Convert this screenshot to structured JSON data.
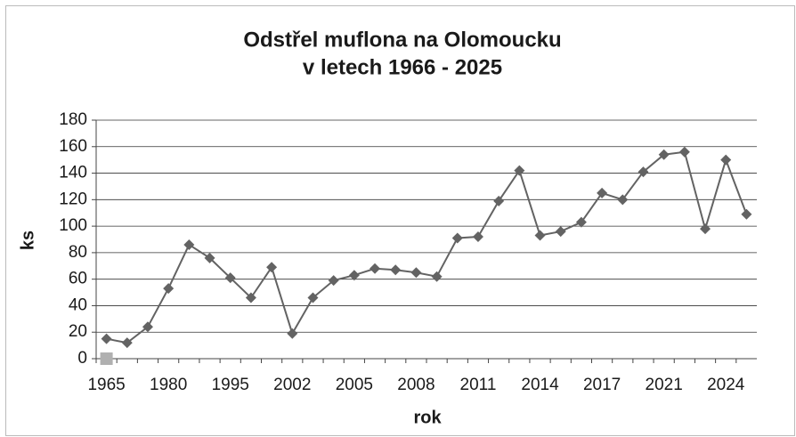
{
  "chart_data": {
    "type": "line",
    "title": [
      "Odstřel muflona na Olomoucku",
      "v letech 1966 - 2025"
    ],
    "x_label": "rok",
    "y_label": "ks",
    "categories": [
      "1965",
      null,
      null,
      "1980",
      null,
      null,
      "1995",
      null,
      null,
      "2002",
      null,
      null,
      "2005",
      null,
      null,
      "2008",
      null,
      null,
      "2011",
      null,
      null,
      "2014",
      null,
      null,
      "2017",
      null,
      null,
      "2021",
      null,
      null,
      "2024",
      null
    ],
    "series": [
      {
        "color": "#636363",
        "values": [
          15,
          12,
          24,
          53,
          86,
          76,
          61,
          46,
          69,
          19,
          46,
          59,
          63,
          68,
          67,
          65,
          62,
          91,
          92,
          119,
          142,
          93,
          96,
          103,
          125,
          120,
          141,
          154,
          156,
          98,
          150,
          109
        ]
      },
      {
        "color": "#b0b0b0",
        "values": [
          0,
          null,
          null,
          null,
          null,
          null,
          null,
          null,
          null,
          null,
          null,
          null,
          null,
          null,
          null,
          null,
          null,
          null,
          null,
          null,
          null,
          null,
          null,
          null,
          null,
          null,
          null,
          null,
          null,
          null,
          null,
          null
        ]
      }
    ],
    "ylim": [
      0,
      180
    ],
    "yticks": [
      0,
      20,
      40,
      60,
      80,
      100,
      120,
      140,
      160,
      180
    ],
    "grid": true
  }
}
